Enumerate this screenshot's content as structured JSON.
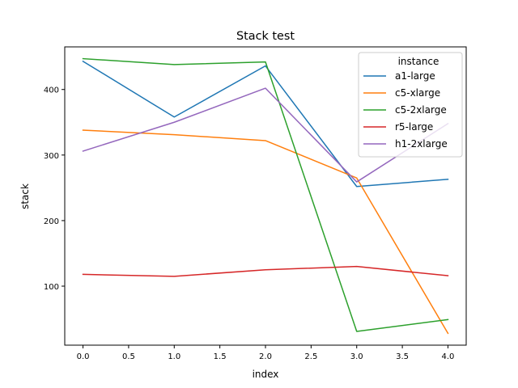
{
  "chart_data": {
    "type": "line",
    "title": "Stack test",
    "xlabel": "index",
    "ylabel": "stack",
    "x": [
      0,
      1,
      2,
      3,
      4
    ],
    "xlim": [
      -0.2,
      4.2
    ],
    "ylim": [
      10,
      465
    ],
    "xticks": [
      0.0,
      0.5,
      1.0,
      1.5,
      2.0,
      2.5,
      3.0,
      3.5,
      4.0
    ],
    "xtick_labels": [
      "0.0",
      "0.5",
      "1.0",
      "1.5",
      "2.0",
      "2.5",
      "3.0",
      "3.5",
      "4.0"
    ],
    "yticks": [
      100,
      200,
      300,
      400
    ],
    "ytick_labels": [
      "100",
      "200",
      "300",
      "400"
    ],
    "grid": false,
    "legend": {
      "title": "instance",
      "placement": "top-right"
    },
    "series": [
      {
        "name": "a1-large",
        "color": "#1f77b4",
        "values": [
          443,
          358,
          436,
          252,
          263
        ]
      },
      {
        "name": "c5-xlarge",
        "color": "#ff7f0e",
        "values": [
          338,
          331,
          322,
          265,
          28
        ]
      },
      {
        "name": "c5-2xlarge",
        "color": "#2ca02c",
        "values": [
          447,
          438,
          442,
          31,
          49
        ]
      },
      {
        "name": "r5-large",
        "color": "#d62728",
        "values": [
          118,
          115,
          125,
          130,
          116
        ]
      },
      {
        "name": "h1-2xlarge",
        "color": "#9467bd",
        "values": [
          306,
          350,
          402,
          259,
          348
        ]
      }
    ]
  }
}
